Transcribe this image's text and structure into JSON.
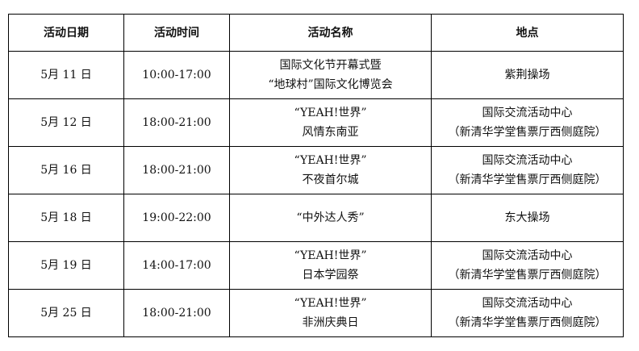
{
  "headers": [
    "活动日期",
    "活动时间",
    "活动名称",
    "地点"
  ],
  "rows": [
    {
      "date": "5月 11 日",
      "time": "10:00-17:00",
      "name": [
        "国际文化节开幕式暨",
        "“地球村”国际文化博览会"
      ],
      "place": [
        "紫荆操场"
      ]
    },
    {
      "date": "5月 12 日",
      "time": "18:00-21:00",
      "name": [
        "“YEAH!世界”",
        "风情东南亚"
      ],
      "place": [
        "国际交流活动中心",
        "（新清华学堂售票厅西侧庭院）"
      ]
    },
    {
      "date": "5月 16 日",
      "time": "18:00-21:00",
      "name": [
        "“YEAH!世界”",
        "不夜首尔城"
      ],
      "place": [
        "国际交流活动中心",
        "（新清华学堂售票厅西侧庭院）"
      ]
    },
    {
      "date": "5月 18 日",
      "time": "19:00-22:00",
      "name": [
        "“中外达人秀”"
      ],
      "place": [
        "东大操场"
      ]
    },
    {
      "date": "5月 19 日",
      "time": "14:00-17:00",
      "name": [
        "“YEAH!世界”",
        "日本学园祭"
      ],
      "place": [
        "国际交流活动中心",
        "（新清华学堂售票厅西侧庭院）"
      ]
    },
    {
      "date": "5月 25 日",
      "time": "18:00-21:00",
      "name": [
        "“YEAH!世界”",
        "非洲庆典日"
      ],
      "place": [
        "国际交流活动中心",
        "（新清华学堂售票厅西侧庭院）"
      ]
    }
  ]
}
